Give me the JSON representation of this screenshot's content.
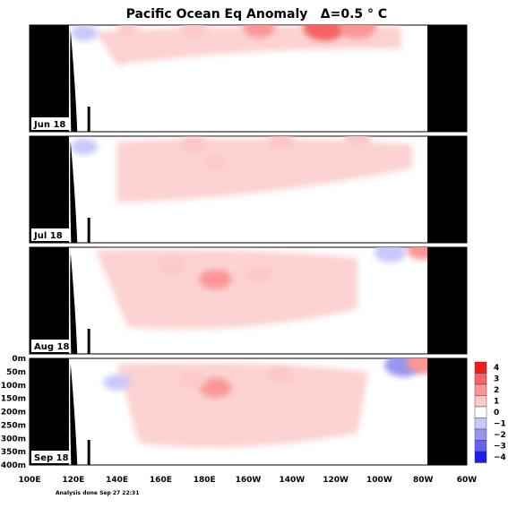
{
  "chart_data": {
    "type": "heatmap",
    "title": "Pacific Ocean Eq Anomaly",
    "contour_interval_label": "Δ=0.5 ° C",
    "x_range_deg_east": [
      100,
      300
    ],
    "x_ticks": [
      "100E",
      "120E",
      "140E",
      "160E",
      "180E",
      "160W",
      "140W",
      "120W",
      "100W",
      "80W",
      "60W"
    ],
    "y_range_m": [
      0,
      400
    ],
    "y_ticks": [
      "0m",
      "50m",
      "100m",
      "150m",
      "200m",
      "250m",
      "300m",
      "350m",
      "400m"
    ],
    "colorbar": {
      "levels": [
        4,
        3,
        2,
        1,
        0,
        -1,
        -2,
        -3,
        -4
      ],
      "labels": [
        "4",
        "3",
        "2",
        "1",
        "0",
        "−1",
        "−2",
        "−3",
        "−4"
      ],
      "colors": [
        "#f01e1e",
        "#f56464",
        "#fa9696",
        "#fcc8c8",
        "#ffffff",
        "#c8c8fa",
        "#9696f0",
        "#6464e6",
        "#1e1ee6"
      ]
    },
    "panels": [
      {
        "label": "Jun 18",
        "anomalies": [
          {
            "lon": 205,
            "depth": 10,
            "value": 1.5
          },
          {
            "lon": 235,
            "depth": 8,
            "value": 2.5
          },
          {
            "lon": 250,
            "depth": 8,
            "value": 2.0
          },
          {
            "lon": 175,
            "depth": 15,
            "value": 1.0
          },
          {
            "lon": 145,
            "depth": 15,
            "value": 0.5
          },
          {
            "lon": 125,
            "depth": 30,
            "value": -1.0
          }
        ]
      },
      {
        "label": "Jul 18",
        "anomalies": [
          {
            "lon": 175,
            "depth": 30,
            "value": 1.0
          },
          {
            "lon": 215,
            "depth": 20,
            "value": 1.0
          },
          {
            "lon": 250,
            "depth": 10,
            "value": 1.0
          },
          {
            "lon": 185,
            "depth": 100,
            "value": 0.5
          },
          {
            "lon": 125,
            "depth": 40,
            "value": -1.0
          }
        ]
      },
      {
        "label": "Aug 18",
        "anomalies": [
          {
            "lon": 185,
            "depth": 120,
            "value": 1.5
          },
          {
            "lon": 205,
            "depth": 100,
            "value": 1.0
          },
          {
            "lon": 165,
            "depth": 70,
            "value": 1.0
          },
          {
            "lon": 265,
            "depth": 20,
            "value": -1.5
          },
          {
            "lon": 280,
            "depth": 10,
            "value": 1.5
          },
          {
            "lon": 125,
            "depth": 100,
            "value": -0.5
          }
        ]
      },
      {
        "label": "Sep 18",
        "anomalies": [
          {
            "lon": 185,
            "depth": 110,
            "value": 1.5
          },
          {
            "lon": 175,
            "depth": 80,
            "value": 1.0
          },
          {
            "lon": 215,
            "depth": 60,
            "value": 1.0
          },
          {
            "lon": 140,
            "depth": 90,
            "value": -1.0
          },
          {
            "lon": 271,
            "depth": 25,
            "value": -2.0
          },
          {
            "lon": 281,
            "depth": 15,
            "value": 2.0
          }
        ]
      }
    ]
  },
  "footer": {
    "analysis_note": "Analysis done Sep 27 22:31"
  }
}
